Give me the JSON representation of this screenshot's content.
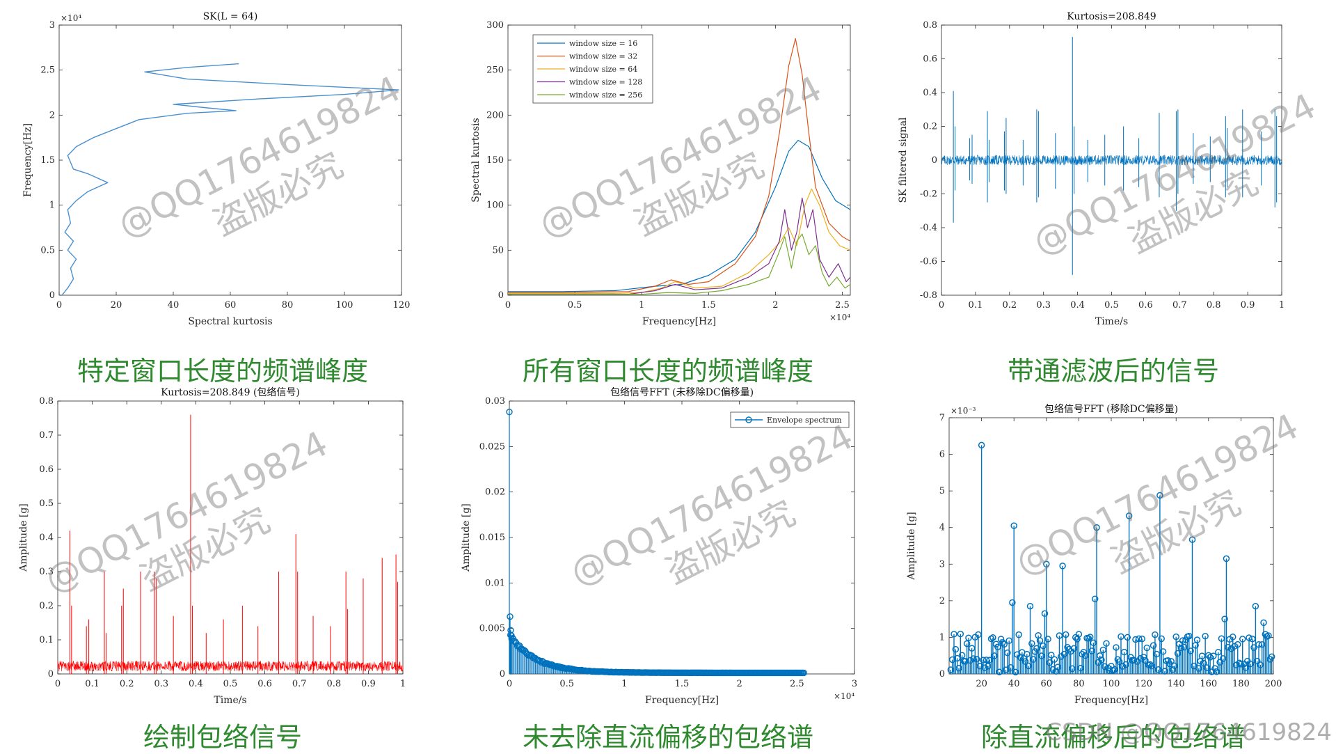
{
  "charts": [
    {
      "chart_data": {
        "type": "line",
        "title": "SK(L = 64)",
        "xlabel": "Spectral kurtosis",
        "ylabel": "Frequency[Hz]",
        "xlim": [
          0,
          120
        ],
        "ylim": [
          0,
          30000
        ],
        "xticks": [
          0,
          20,
          40,
          60,
          80,
          100,
          120
        ],
        "yticks": [
          0,
          5000,
          10000,
          15000,
          20000,
          25000,
          30000
        ],
        "yticklabels": [
          "0",
          "0.5",
          "1",
          "1.5",
          "2",
          "2.5",
          "3"
        ],
        "yexponent": "×10⁴",
        "orientation": "vertical",
        "series": [
          {
            "color": "#4a90d0",
            "x": [
              1,
              3,
              5,
              4,
              6,
              3,
              5,
              2,
              4,
              3,
              6,
              10,
              17,
              10,
              5,
              3,
              6,
              12,
              20,
              28,
              45,
              62,
              52,
              40,
              70,
              100,
              119,
              80,
              45,
              30,
              45,
              63
            ],
            "y": [
              0,
              800,
              1800,
              3000,
              4000,
              5000,
              6000,
              7000,
              8000,
              9500,
              10500,
              11500,
              12500,
              13500,
              14000,
              15500,
              16500,
              17500,
              18500,
              19500,
              20200,
              20500,
              20800,
              21200,
              21800,
              22300,
              22800,
              23400,
              24000,
              24800,
              25300,
              25700
            ]
          }
        ]
      },
      "caption": "特定窗口长度的频谱峰度"
    },
    {
      "chart_data": {
        "type": "line",
        "title": "",
        "xlabel": "Frequency[Hz]",
        "ylabel": "Spectral kurtosis",
        "xlim": [
          0,
          25600
        ],
        "ylim": [
          0,
          300
        ],
        "xticks": [
          0,
          5000,
          10000,
          15000,
          20000,
          25000
        ],
        "xticklabels": [
          "0",
          "0.5",
          "1",
          "1.5",
          "2",
          "2.5"
        ],
        "xexponent": "×10⁴",
        "yticks": [
          0,
          50,
          100,
          150,
          200,
          250,
          300
        ],
        "legend_position": "top-left",
        "series": [
          {
            "name": "window size = 16",
            "color": "#0072bd",
            "x": [
              0,
              4000,
              8000,
              11000,
              13000,
              15000,
              17000,
              18500,
              20000,
              21000,
              21700,
              22500,
              23500,
              24500,
              25600
            ],
            "y": [
              4,
              4,
              5,
              10,
              12,
              22,
              40,
              70,
              120,
              160,
              172,
              165,
              130,
              105,
              95
            ]
          },
          {
            "name": "window size = 32",
            "color": "#d95319",
            "x": [
              0,
              5000,
              9000,
              11000,
              12200,
              13500,
              15000,
              17000,
              18500,
              19500,
              20300,
              21000,
              21500,
              22000,
              22500,
              23000,
              24000,
              25000,
              25600
            ],
            "y": [
              3,
              3,
              4,
              10,
              17,
              12,
              15,
              35,
              65,
              110,
              180,
              255,
              285,
              245,
              180,
              120,
              80,
              65,
              60
            ]
          },
          {
            "name": "window size = 64",
            "color": "#edb120",
            "x": [
              0,
              8000,
              10000,
              11500,
              12500,
              14000,
              16000,
              18000,
              19500,
              20400,
              21000,
              21600,
              22200,
              22700,
              23300,
              24000,
              24800,
              25600
            ],
            "y": [
              2,
              2,
              3,
              8,
              15,
              8,
              10,
              25,
              45,
              60,
              75,
              55,
              100,
              118,
              100,
              70,
              55,
              50
            ]
          },
          {
            "name": "window size = 128",
            "color": "#7e2f8e",
            "x": [
              0,
              9000,
              11000,
              12500,
              14000,
              16000,
              18000,
              19500,
              20300,
              20700,
              21200,
              21600,
              22000,
              22400,
              22800,
              23300,
              24000,
              24700,
              25300,
              25600
            ],
            "y": [
              1,
              1,
              5,
              12,
              6,
              8,
              20,
              35,
              60,
              95,
              50,
              70,
              108,
              75,
              95,
              40,
              20,
              35,
              15,
              20
            ]
          },
          {
            "name": "window size = 256",
            "color": "#77ac30",
            "x": [
              0,
              10000,
              12000,
              14000,
              16000,
              18000,
              19500,
              20200,
              20700,
              21200,
              21600,
              22000,
              22500,
              23000,
              23500,
              24000,
              24600,
              25200,
              25600
            ],
            "y": [
              1,
              1,
              3,
              2,
              5,
              12,
              20,
              45,
              65,
              30,
              60,
              68,
              45,
              55,
              25,
              10,
              20,
              8,
              12
            ]
          }
        ]
      },
      "caption": "所有窗口长度的频谱峰度"
    },
    {
      "chart_data": {
        "type": "line",
        "title": "Kurtosis=208.849",
        "xlabel": "Time/s",
        "ylabel": "SK filtered signal",
        "xlim": [
          0,
          1
        ],
        "ylim": [
          -0.8,
          0.8
        ],
        "xticks": [
          0,
          0.1,
          0.2,
          0.3,
          0.4,
          0.5,
          0.6,
          0.7,
          0.8,
          0.9,
          1
        ],
        "yticks": [
          -0.8,
          -0.6,
          -0.4,
          -0.2,
          0,
          0.2,
          0.4,
          0.6,
          0.8
        ],
        "noise_amplitude": 0.03,
        "spikes": {
          "x": [
            0.035,
            0.04,
            0.083,
            0.09,
            0.135,
            0.14,
            0.185,
            0.19,
            0.24,
            0.28,
            0.285,
            0.335,
            0.385,
            0.39,
            0.43,
            0.48,
            0.535,
            0.58,
            0.64,
            0.69,
            0.695,
            0.74,
            0.79,
            0.835,
            0.84,
            0.885,
            0.94,
            0.98,
            0.985
          ],
          "pos": [
            0.41,
            0.2,
            0.13,
            0.15,
            0.29,
            0.12,
            0.17,
            0.25,
            0.12,
            0.3,
            0.29,
            0.16,
            0.73,
            0.2,
            0.12,
            0.15,
            0.2,
            0.13,
            0.28,
            0.29,
            0.3,
            0.16,
            0.14,
            0.26,
            0.19,
            0.3,
            0.17,
            0.3,
            0.26
          ],
          "neg": [
            -0.37,
            -0.18,
            -0.12,
            -0.14,
            -0.25,
            -0.13,
            -0.18,
            -0.2,
            -0.15,
            -0.25,
            -0.22,
            -0.17,
            -0.68,
            -0.2,
            -0.13,
            -0.15,
            -0.18,
            -0.16,
            -0.22,
            -0.3,
            -0.2,
            -0.14,
            -0.13,
            -0.22,
            -0.16,
            -0.22,
            -0.15,
            -0.28,
            -0.25
          ]
        },
        "color": "#0072bd"
      },
      "caption": "带通滤波后的信号"
    },
    {
      "chart_data": {
        "type": "line",
        "title": "Kurtosis=208.849 (包络信号)",
        "xlabel": "Time/s",
        "ylabel": "Amplitude [g]",
        "xlim": [
          0,
          1
        ],
        "ylim": [
          0,
          0.8
        ],
        "xticks": [
          0,
          0.1,
          0.2,
          0.3,
          0.4,
          0.5,
          0.6,
          0.7,
          0.8,
          0.9,
          1
        ],
        "yticks": [
          0,
          0.1,
          0.2,
          0.3,
          0.4,
          0.5,
          0.6,
          0.7,
          0.8
        ],
        "noise_level": 0.03,
        "spikes": {
          "x": [
            0.035,
            0.04,
            0.083,
            0.09,
            0.135,
            0.14,
            0.185,
            0.19,
            0.24,
            0.28,
            0.285,
            0.335,
            0.385,
            0.39,
            0.43,
            0.48,
            0.535,
            0.58,
            0.64,
            0.69,
            0.695,
            0.74,
            0.79,
            0.835,
            0.84,
            0.885,
            0.94,
            0.98,
            0.985
          ],
          "y": [
            0.42,
            0.2,
            0.14,
            0.16,
            0.3,
            0.12,
            0.2,
            0.25,
            0.3,
            0.3,
            0.28,
            0.17,
            0.76,
            0.2,
            0.12,
            0.16,
            0.2,
            0.14,
            0.3,
            0.41,
            0.3,
            0.17,
            0.14,
            0.3,
            0.19,
            0.28,
            0.34,
            0.35,
            0.27
          ]
        },
        "color": "#ff0000"
      },
      "caption": "绘制包络信号"
    },
    {
      "chart_data": {
        "type": "stem",
        "title": "包络信号FFT (未移除DC偏移量)",
        "xlabel": "Frequency[Hz]",
        "ylabel": "Amplitude [g]",
        "xlim": [
          0,
          30000
        ],
        "ylim": [
          0,
          0.03
        ],
        "xticks": [
          0,
          5000,
          10000,
          15000,
          20000,
          25000,
          30000
        ],
        "xticklabels": [
          "0",
          "0.5",
          "1",
          "1.5",
          "2",
          "2.5",
          "3"
        ],
        "xexponent": "×10⁴",
        "yticks": [
          0,
          0.005,
          0.01,
          0.015,
          0.02,
          0.025,
          0.03
        ],
        "dc_value": 0.0288,
        "secondary_peaks": [
          0.0063,
          0.0048,
          0.0042
        ],
        "decay_start": 0.004,
        "x_end": 25600,
        "legend_position": "top-right",
        "series": [
          {
            "name": "Envelope spectrum",
            "color": "#0072bd"
          }
        ]
      },
      "caption": "未去除直流偏移的包络谱"
    },
    {
      "chart_data": {
        "type": "stem",
        "title": "包络信号FFT (移除DC偏移量)",
        "xlabel": "Frequency[Hz]",
        "ylabel": "Amplitude [g]",
        "xlim": [
          0,
          200
        ],
        "ylim": [
          0,
          7
        ],
        "yexponent": "×10⁻³",
        "xticks": [
          20,
          40,
          60,
          80,
          100,
          120,
          140,
          160,
          180,
          200
        ],
        "yticks": [
          0,
          1,
          2,
          3,
          4,
          5,
          6,
          7
        ],
        "peaks": {
          "x": [
            20,
            39,
            40,
            50,
            59,
            60,
            70,
            90,
            91,
            110,
            111,
            130,
            150,
            170,
            171,
            189,
            194
          ],
          "y": [
            6.25,
            1.95,
            4.05,
            1.85,
            1.65,
            3.0,
            2.95,
            2.05,
            4.0,
            1.0,
            4.32,
            4.88,
            3.67,
            1.5,
            3.15,
            1.85,
            1.4
          ]
        },
        "color": "#0072bd"
      },
      "caption": "除直流偏移后的包络谱"
    }
  ],
  "watermark": {
    "line1": "@QQ1764619824",
    "line2": "盗版必究"
  },
  "corner_watermark": "CSDN @QQ1764619824"
}
